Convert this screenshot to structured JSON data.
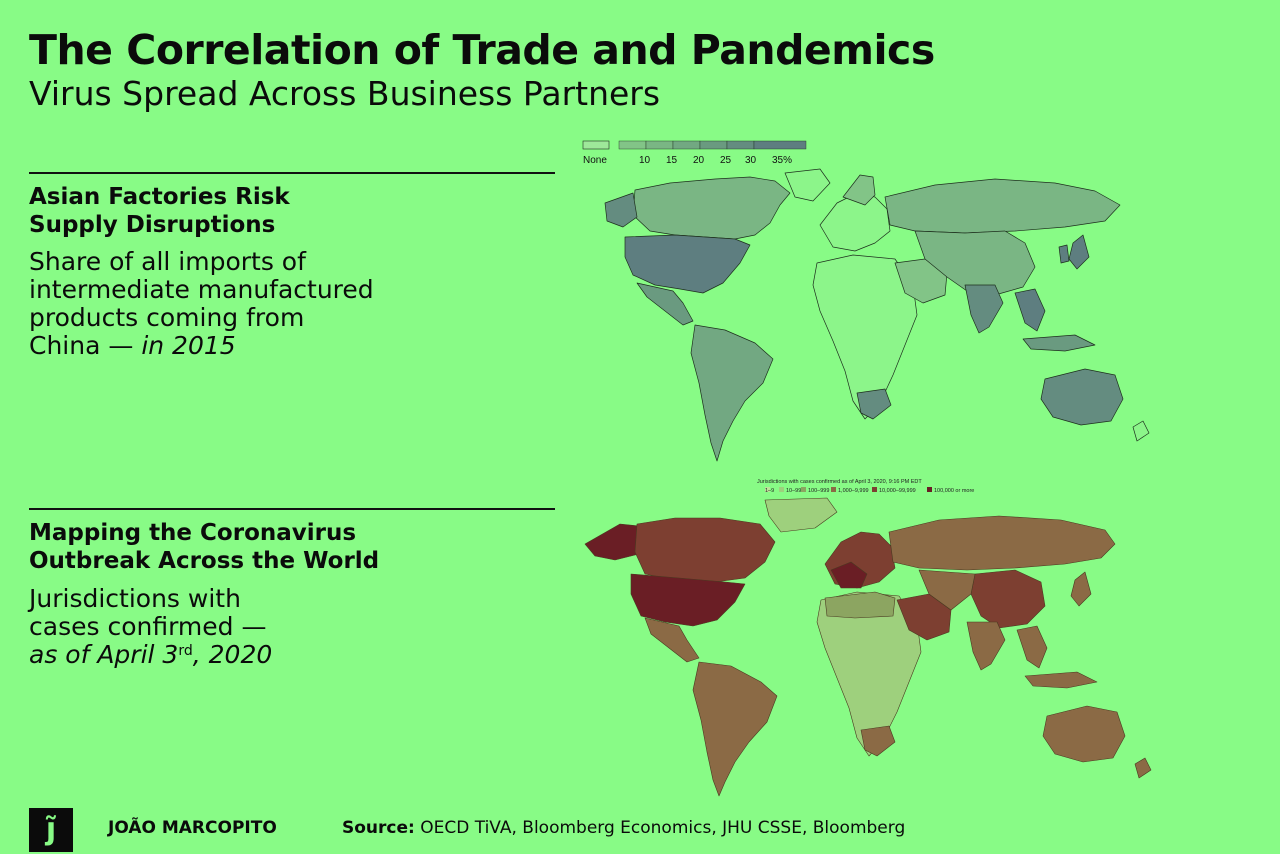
{
  "header": {
    "title": "The Correlation of Trade and Pandemics",
    "subtitle": "Virus Spread Across Business Partners"
  },
  "section1": {
    "heading_line1": "Asian Factories Risk",
    "heading_line2": "Supply Disruptions",
    "text_line1": "Share of all imports of",
    "text_line2": "intermediate manufactured",
    "text_line3": "products coming from",
    "text_line4_plain": "China — ",
    "text_line4_italic": "in 2015"
  },
  "section2": {
    "heading_line1": "Mapping the Coronavirus",
    "heading_line2": "Outbreak Across the World",
    "text_line1": "Jurisdictions with",
    "text_line2": "cases confirmed —",
    "text_line3_italic_a": "as of April 3",
    "text_line3_sup": "rd",
    "text_line3_italic_b": ", 2020"
  },
  "trade_map": {
    "legend": [
      "None",
      "10",
      "15",
      "20",
      "25",
      "30",
      "35%"
    ],
    "legend_colors": [
      "#9ee89a",
      "#82c487",
      "#7ab684",
      "#72a882",
      "#6a9a80",
      "#648c80",
      "#5e7e80"
    ],
    "colors": {
      "base": "#8cf58a",
      "outline": "#1d2f1d"
    }
  },
  "covid_map": {
    "title": "Jurisdictions with cases confirmed as of April 3, 2020, 9:16 PM EDT",
    "legend": [
      "1–9",
      "10–99",
      "100–999",
      "1,000–9,999",
      "10,000–99,999",
      "100,000 or more"
    ],
    "legend_colors": [
      "#bde39a",
      "#9ed07d",
      "#8ca561",
      "#8b6a45",
      "#7d3f31",
      "#6a1e25"
    ],
    "colors": {
      "land": "#8b6d45",
      "outline": "#4a3a20"
    }
  },
  "footer": {
    "logo": "j̃",
    "author": "JOÃO MARCOPITO",
    "source_label": "Source:",
    "source_text": " OECD TiVA, Bloomberg Economics, JHU CSSE, Bloomberg"
  }
}
